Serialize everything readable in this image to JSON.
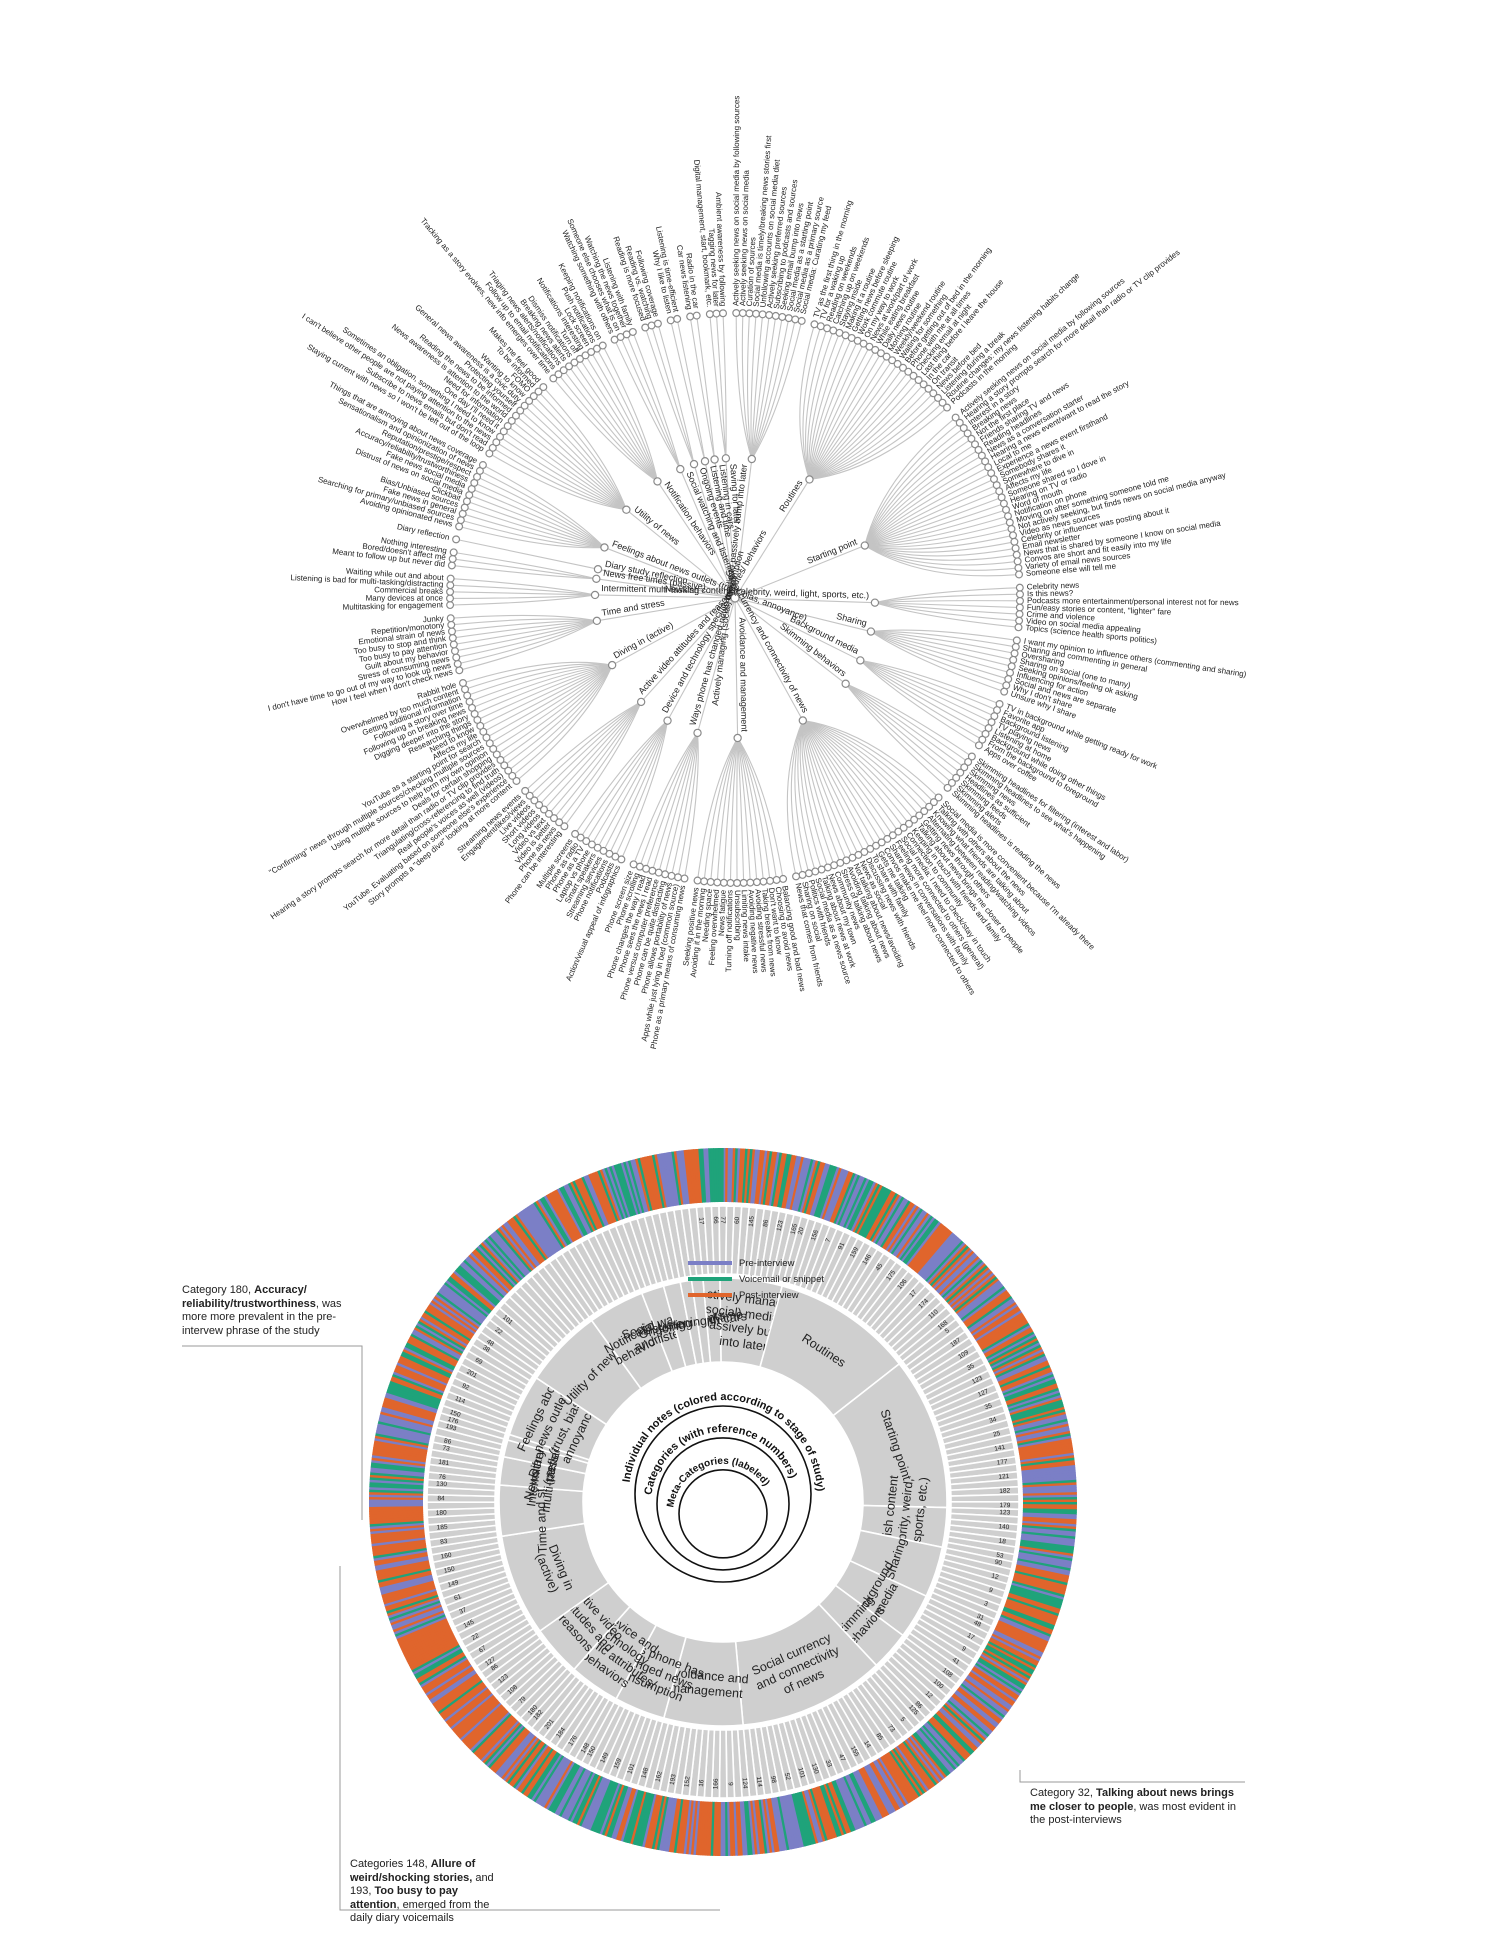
{
  "colors": {
    "pre_interview": "#7b7fc6",
    "voicemail": "#1fa37a",
    "post_interview": "#e0652c",
    "sector": "#cfcfcf",
    "branch": "#c4c4c4"
  },
  "legend": {
    "items": [
      {
        "label": "Pre-interview",
        "color": "#7b7fc6"
      },
      {
        "label": "Voicemail or snippet",
        "color": "#1fa37a"
      },
      {
        "label": "Post-interview",
        "color": "#e0652c"
      }
    ]
  },
  "ring_key": {
    "individual": "Individual notes (colored according to stage of study)",
    "categories": "Categories (with reference numbers)",
    "meta": "Meta-Categories (labeled)"
  },
  "annotations": [
    {
      "pre": "Category 180, ",
      "bold": "Accuracy/ reliability/trustworthiness",
      "post": ", was more more prevalent in the pre-intervew phrase of the study"
    },
    {
      "pre": "Category 32, ",
      "bold": "Talking about news brings me closer to people",
      "post": ", was most evident in the post-interviews"
    },
    {
      "pre": "Categories 148, ",
      "bold": "Allure of weird/shocking stories,",
      "mid": " and 193, ",
      "bold2": "Too busy to pay attention",
      "post": ", emerged from the daily diary voicemails"
    }
  ],
  "meta_categories": [
    {
      "label": "Saving for later",
      "wheel": [
        "Saving for later"
      ],
      "leaves": [
        "Digital management, start, bookmark, etc.",
        "Tagging news for later",
        "Ambient awareness by following"
      ]
    },
    {
      "label": "Actively managing (social) media to passively bump into later",
      "wheel": [
        "Actively managing",
        "(social) media to",
        "passively bump",
        "into later"
      ],
      "leaves": [
        "Actively seeking news on social media by following sources",
        "Actively seeking news on social media",
        "Curation of sources",
        "Social media is timely/breaking news stories first",
        "Unfollowing accounts on social media diet",
        "Actively seeking preferred sources",
        "Subscribing to podcasts and sources",
        "Seeking email bump into news",
        "Social media as a starting point",
        "Social media as a primary source",
        "Social media: Curating my feed"
      ]
    },
    {
      "label": "Routines",
      "wheel": [
        "Routines"
      ],
      "leaves": [
        "TV as the first thing in the morning",
        "TV for a waking up",
        "Reading on weekends",
        "Catching up on weekends",
        "Staying inside",
        "Making it a routine",
        "Getting news before sleeping",
        "Work commute routine",
        "On my way to work",
        "News at work/part of work",
        "While eating breakfast",
        "Daily news routine",
        "Morning routine",
        "Weekly/weekend routine",
        "Waiting for something",
        "Before getting out of bed in the morning",
        "Phone with me at all times",
        "Checking email at night",
        "Last thing before I leave the house",
        "In the car",
        "On transit",
        "News before bed",
        "Listening during a break",
        "Routine changes: my news listening habits change",
        "Podcasts in the morning"
      ]
    },
    {
      "label": "Starting point",
      "wheel": [
        "Starting point"
      ],
      "leaves": [
        "Actively seeking news on social media by following sources",
        "Hearing a story prompts search for more detail than radio or TV clip provides",
        "Interest in a story",
        "Breaking news",
        "Not the first place",
        "Friends sharing TV and news",
        "Reading headlines",
        "News as a conversation starter",
        "Hearing a news event/want to read the story",
        "Local to me",
        "Experience a news event firsthand",
        "Somebody shares it",
        "Somewhere to dive in",
        "Affects my life",
        "Someone shared so I dove in",
        "Hearing on TV or radio",
        "Word of mouth",
        "Notification on phone",
        "Moving on after something someone told me",
        "Not actively seeking, but finds news on social media anyway",
        "Video as news sources",
        "Celebrity or influencer was posting about it",
        "Email newsletter",
        "News that is shared by someone I know on social media",
        "Convos are short and fit easily into my life",
        "Variety of email news sources",
        "Someone else will tell me"
      ]
    },
    {
      "label": "Newsish content (celebrity, weird, light, sports, etc.)",
      "wheel": [
        "Newsish content",
        "(celebrity, weird,",
        "light, sports, etc.)"
      ],
      "leaves": [
        "Celebrity news",
        "Is this news?",
        "Podcasts more entertainment/personal interest not for news",
        "Fun/easy stories or content, \"lighter\" fare",
        "Crime and violence",
        "Video on social media appealing",
        "Topics (science health sports politics)"
      ]
    },
    {
      "label": "Sharing",
      "wheel": [
        "Sharing"
      ],
      "leaves": [
        "I want my opinion to influence others (commenting and sharing)",
        "Sharing and commenting in general",
        "Oversharing",
        "Sharing on social (one to many)",
        "Seeking opinions/feeling ok asking",
        "Influencing for action",
        "Social and news are separate",
        "Why I don't share",
        "Unsure why I share"
      ]
    },
    {
      "label": "Background media",
      "wheel": [
        "Background",
        "media"
      ],
      "leaves": [
        "TV in background while getting ready for work",
        "Favorite app",
        "Background listening",
        "TV playing news",
        "Listening at home",
        "Background while doing other things",
        "From the background to foreground",
        "Apps over coffee"
      ]
    },
    {
      "label": "Skimming behaviors",
      "wheel": [
        "Skimming",
        "behaviors"
      ],
      "leaves": [
        "Skimming headlines for filtering (interest and labor)",
        "Skimming headlines to see what's happening",
        "Skimming news",
        "Headlines as sufficient",
        "Skimming feeds",
        "Skimming alerts",
        "Skimming headlines is reading the news"
      ]
    },
    {
      "label": "Social currency and connectivity of news",
      "wheel": [
        "Social currency",
        "and connectivity",
        "of news"
      ],
      "leaves": [
        "Social media is more convenient because I'm already there",
        "Talking with others about the news",
        "Knowing what friends are talking about",
        "Alternating between reading/watching videos",
        "Getting news through others",
        "Talking about news brings me closer to people",
        "Keeping in touch with friends and family",
        "Connection to community",
        "Social media: I need to check/stay in touch",
        "Feeling more connected to others (general)",
        "Share news in conversations with family",
        "Convos make me feel more connected to others",
        "Gets me talking",
        "To share with family",
        "Discussing news with friends",
        "News as social",
        "Not talking about news/avoiding",
        "Avoiding talking about news",
        "Stress of talking about news",
        "Community news",
        "News about my town",
        "Talking about news at work",
        "Social media as a news source",
        "Politics with friends",
        "Sharing on social",
        "News that comes from friends"
      ]
    },
    {
      "label": "Avoidance and management",
      "wheel": [
        "Avoidance and",
        "management"
      ],
      "leaves": [
        "Balancing good and bad news",
        "Choosing to avoid news",
        "Don't want to know",
        "Taking breaks from news",
        "Avoiding stressful news",
        "Avoiding negative news",
        "Limiting news intake",
        "Unsubscribing",
        "Turning off notifications",
        "News fatigue",
        "Feeling overwhelmed",
        "Needing space",
        "Avoiding it in the morning",
        "Seeking positive news"
      ]
    },
    {
      "label": "Ways phone has changed news consumption",
      "wheel": [
        "Ways phone has",
        "changed news",
        "consumption"
      ],
      "leaves": [
        "Phone as a primary means of consuming news",
        "Apps while just lying in bed (common source)",
        "Phone allows portability of news",
        "Phone can be quite distracting",
        "Phone versus computer preference",
        "Phone sees the news I read",
        "Phone changes the way I read",
        "Phone scrolling",
        "Phone screen size"
      ]
    },
    {
      "label": "Device and technology specific attributes/ behaviors",
      "wheel": [
        "Device and",
        "technology",
        "specific attributes/",
        "behaviors"
      ],
      "leaves": [
        "Action/visual appeal of infographics",
        "Podcasts",
        "Phone notifications",
        "Streaming services",
        "Smart speakers",
        "Laptop vs phone",
        "Phone as a TV",
        "Phone as radio",
        "Multiple screens"
      ]
    },
    {
      "label": "Active video attitudes and reasons",
      "wheel": [
        "Active video",
        "attitudes and",
        "reasons"
      ],
      "leaves": [
        "Phone can be interesting",
        "Phone as news",
        "Video is better",
        "Video vs text",
        "Long videos",
        "Short videos",
        "Live videos",
        "Engagement/likes/views",
        "Streaming news events"
      ]
    },
    {
      "label": "Diving in (active)",
      "wheel": [
        "Diving in",
        "(active)"
      ],
      "leaves": [
        "Story prompts a \"deep dive\" looking at more content",
        "YouTube. Evaluating based on someone else's experience",
        "Real people's voices as well (videos)",
        "Triangulating/cross-referencing to find truth",
        "Hearing a story prompts search for more detail than radio or TV clip provides",
        "Deals for certain shopping",
        "Using multiple sources to help form my own opinion",
        "\"Confirming\" news through multiple sources/checking multiple sources",
        "YouTube as a starting point for search",
        "Affects my life",
        "Need to know",
        "Researching things",
        "Digging deeper into the story",
        "Following up on breaking news",
        "Following a story over time",
        "Getting additional information",
        "Overwhelmed by too much content",
        "Rabbit hole"
      ]
    },
    {
      "label": "Time and stress",
      "wheel": [
        "Time and stress"
      ],
      "leaves": [
        "How I feel when I don't check news",
        "I don't have time to go out of my way to look up news",
        "Stress of consuming news",
        "Guilt about my behavior",
        "Too busy to pay attention",
        "Too busy to stop and think",
        "Emotional strain of news",
        "Repetition/monotony",
        "Junky"
      ]
    },
    {
      "label": "Intermittent multi-tasking",
      "wheel": [
        "Intermittent",
        "multi-tasking"
      ],
      "leaves": [
        "Multitasking for engagement",
        "Many devices at once",
        "Commercial breaks",
        "Listening is bad for multi-tasking/distracting",
        "Waiting while out and about"
      ]
    },
    {
      "label": "News free times (passive)",
      "wheel": [
        "News free times",
        "(passive)"
      ],
      "leaves": [
        "Meant to follow up but never did",
        "Bored/doesn't affect me",
        "Nothing interesting"
      ]
    },
    {
      "label": "Diary study reflection",
      "wheel": [
        "Diary study",
        "reflection"
      ],
      "leaves": [
        "Diary reflection"
      ]
    },
    {
      "label": "Feelings about news outlets (trust, bias, annoyance)",
      "wheel": [
        "Feelings about",
        "news outlets",
        "(trust, bias,",
        "annoyance)"
      ],
      "leaves": [
        "Avoiding opinionated news",
        "Searching for primary/unbiased sources",
        "Fake news in general",
        "Bias/Unbiased sources",
        "Clickbait",
        "Distrust of news on social media",
        "Fake news social media",
        "Accuracy/reliability/trustworthiness",
        "Reputation/prestige/respect",
        "Sensationalism and opinionization of news",
        "Things that are annoying about news coverage"
      ]
    },
    {
      "label": "Utility of news",
      "wheel": [
        "Utility of news"
      ],
      "leaves": [
        "Staying current with news so I won't be left out of the loop",
        "Subscribe to news emails but don't read",
        "I can't believe other people are not paying attention to the news",
        "Sometimes an obligation, something I need to know",
        "One day I'll need it",
        "Need for information",
        "News awareness is attention to the world",
        "Reading the news to be informed",
        "Protecting yourself",
        "General news awareness is a civic duty",
        "Wanting to know",
        "FOMO",
        "To be informed",
        "Makes me feel good"
      ]
    },
    {
      "label": "Notification behaviors",
      "wheel": [
        "Notification",
        "behaviors"
      ],
      "leaves": [
        "Tracking as a story evolves, new info emerges over time",
        "Follow up to email notifications",
        "Triaging news alerts/notifications",
        "Breaking news alerts",
        "Dismiss notifications",
        "Turn off",
        "Notifications interesting",
        "Lock screen",
        "Push notifications",
        "Keeping notifications on"
      ]
    },
    {
      "label": "Social watching and listening",
      "wheel": [
        "Social watching",
        "and listening"
      ],
      "leaves": [
        "Watching something with others",
        "Someone else chooses what is on",
        "Watching the news together",
        "Listening with family"
      ]
    },
    {
      "label": "Ongoing events",
      "wheel": [
        "Ongoing events"
      ],
      "leaves": [
        "Reading is more focused",
        "Reading vs. watching",
        "Following coverage"
      ]
    },
    {
      "label": "Listening and time",
      "wheel": [
        "Listening and time"
      ],
      "leaves": [
        "Why I like to listen",
        "Listening is time-efficient"
      ]
    },
    {
      "label": "Listening in cars",
      "wheel": [
        "Listening in cars"
      ],
      "leaves": [
        "Car news listening",
        "Radio in the car"
      ]
    }
  ],
  "ref_numbers": [
    "17",
    "66",
    "77",
    "60",
    "145",
    "86",
    "123",
    "165",
    "20",
    "156",
    "7",
    "91",
    "159",
    "146",
    "45",
    "175",
    "106",
    "17",
    "174",
    "110",
    "168",
    "5",
    "187",
    "109",
    "35",
    "123",
    "127",
    "35",
    "34",
    "25",
    "141",
    "177",
    "121",
    "182",
    "179",
    "123",
    "140",
    "18",
    "53",
    "90",
    "12",
    "9",
    "3",
    "31",
    "48",
    "17",
    "9",
    "41",
    "108",
    "100",
    "12",
    "86",
    "125",
    "5",
    "73",
    "85",
    "14",
    "155",
    "47",
    "33",
    "130",
    "101",
    "52",
    "98",
    "114",
    "124",
    "9",
    "166",
    "16",
    "152",
    "193",
    "162",
    "148",
    "101",
    "159",
    "149",
    "150",
    "148",
    "176",
    "184",
    "201",
    "182",
    "180",
    "79",
    "108",
    "123",
    "86",
    "127",
    "67",
    "22",
    "145",
    "37",
    "61",
    "149",
    "150",
    "160",
    "83",
    "185",
    "180",
    "84",
    "130",
    "76",
    "181",
    "73",
    "86",
    "193",
    "176",
    "150",
    "114",
    "92",
    "201",
    "69",
    "38",
    "48",
    "22",
    "101"
  ]
}
